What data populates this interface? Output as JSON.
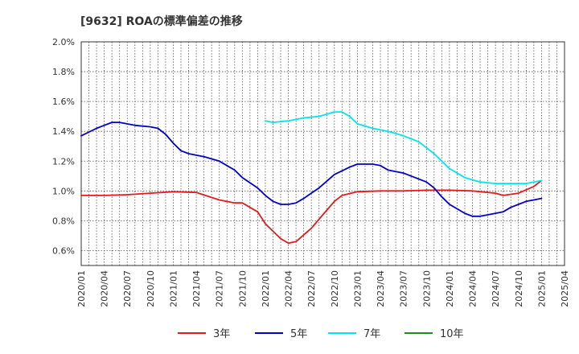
{
  "title": "[9632]  ROAの標準偏差の推移",
  "chart_data": {
    "type": "line",
    "title": "[9632]  ROAの標準偏差の推移",
    "xlabel": "",
    "ylabel": "",
    "ylim": [
      0.5,
      2.0
    ],
    "y_ticks": [
      "2.0%",
      "1.8%",
      "1.6%",
      "1.4%",
      "1.2%",
      "1.0%",
      "0.8%",
      "0.6%"
    ],
    "x_ticks": [
      "2020/01",
      "2020/04",
      "2020/07",
      "2020/10",
      "2021/01",
      "2021/04",
      "2021/07",
      "2021/10",
      "2022/01",
      "2022/04",
      "2022/07",
      "2022/10",
      "2023/01",
      "2023/04",
      "2023/07",
      "2023/10",
      "2024/01",
      "2024/04",
      "2024/07",
      "2024/10",
      "2025/01",
      "2025/04"
    ],
    "grid": true,
    "legend_position": "bottom",
    "series": [
      {
        "name": "3年",
        "color": "#e41a1c",
        "x": [
          "2020/01",
          "2020/04",
          "2020/07",
          "2020/10",
          "2021/01",
          "2021/04",
          "2021/07",
          "2021/09",
          "2021/10",
          "2021/12",
          "2022/01",
          "2022/03",
          "2022/04",
          "2022/05",
          "2022/07",
          "2022/08",
          "2022/10",
          "2022/11",
          "2023/01",
          "2023/04",
          "2023/07",
          "2023/10",
          "2024/01",
          "2024/04",
          "2024/07",
          "2024/08",
          "2024/10",
          "2024/12",
          "2025/01"
        ],
        "values": [
          0.97,
          0.97,
          0.975,
          0.985,
          0.995,
          0.99,
          0.94,
          0.92,
          0.92,
          0.86,
          0.78,
          0.68,
          0.65,
          0.66,
          0.75,
          0.81,
          0.93,
          0.97,
          0.995,
          1.0,
          1.0,
          1.005,
          1.005,
          1.0,
          0.985,
          0.97,
          0.985,
          1.03,
          1.07
        ]
      },
      {
        "name": "5年",
        "color": "#0000cc",
        "x": [
          "2020/01",
          "2020/03",
          "2020/05",
          "2020/06",
          "2020/08",
          "2020/10",
          "2020/11",
          "2020/12",
          "2021/01",
          "2021/02",
          "2021/03",
          "2021/05",
          "2021/07",
          "2021/09",
          "2021/10",
          "2021/12",
          "2022/01",
          "2022/02",
          "2022/03",
          "2022/04",
          "2022/05",
          "2022/06",
          "2022/08",
          "2022/10",
          "2022/12",
          "2023/01",
          "2023/03",
          "2023/04",
          "2023/05",
          "2023/07",
          "2023/08",
          "2023/10",
          "2023/11",
          "2023/12",
          "2024/01",
          "2024/03",
          "2024/04",
          "2024/05",
          "2024/06",
          "2024/08",
          "2024/09",
          "2024/10",
          "2024/11",
          "2024/12",
          "2025/01"
        ],
        "values": [
          1.37,
          1.42,
          1.46,
          1.46,
          1.44,
          1.43,
          1.42,
          1.38,
          1.32,
          1.27,
          1.25,
          1.23,
          1.2,
          1.14,
          1.09,
          1.02,
          0.97,
          0.93,
          0.91,
          0.91,
          0.92,
          0.95,
          1.02,
          1.11,
          1.16,
          1.18,
          1.18,
          1.17,
          1.14,
          1.12,
          1.1,
          1.06,
          1.02,
          0.96,
          0.91,
          0.85,
          0.83,
          0.83,
          0.84,
          0.86,
          0.89,
          0.91,
          0.93,
          0.94,
          0.95
        ]
      },
      {
        "name": "7年",
        "color": "#00e5ee",
        "x": [
          "2022/01",
          "2022/02",
          "2022/04",
          "2022/06",
          "2022/08",
          "2022/10",
          "2022/11",
          "2022/12",
          "2023/01",
          "2023/03",
          "2023/05",
          "2023/07",
          "2023/09",
          "2023/11",
          "2024/01",
          "2024/03",
          "2024/05",
          "2024/07",
          "2024/09",
          "2024/11",
          "2025/01"
        ],
        "values": [
          1.47,
          1.46,
          1.47,
          1.49,
          1.5,
          1.53,
          1.53,
          1.5,
          1.45,
          1.42,
          1.4,
          1.37,
          1.33,
          1.25,
          1.15,
          1.09,
          1.06,
          1.05,
          1.05,
          1.05,
          1.07
        ]
      },
      {
        "name": "10年",
        "color": "#228b22",
        "x": [],
        "values": []
      }
    ]
  }
}
